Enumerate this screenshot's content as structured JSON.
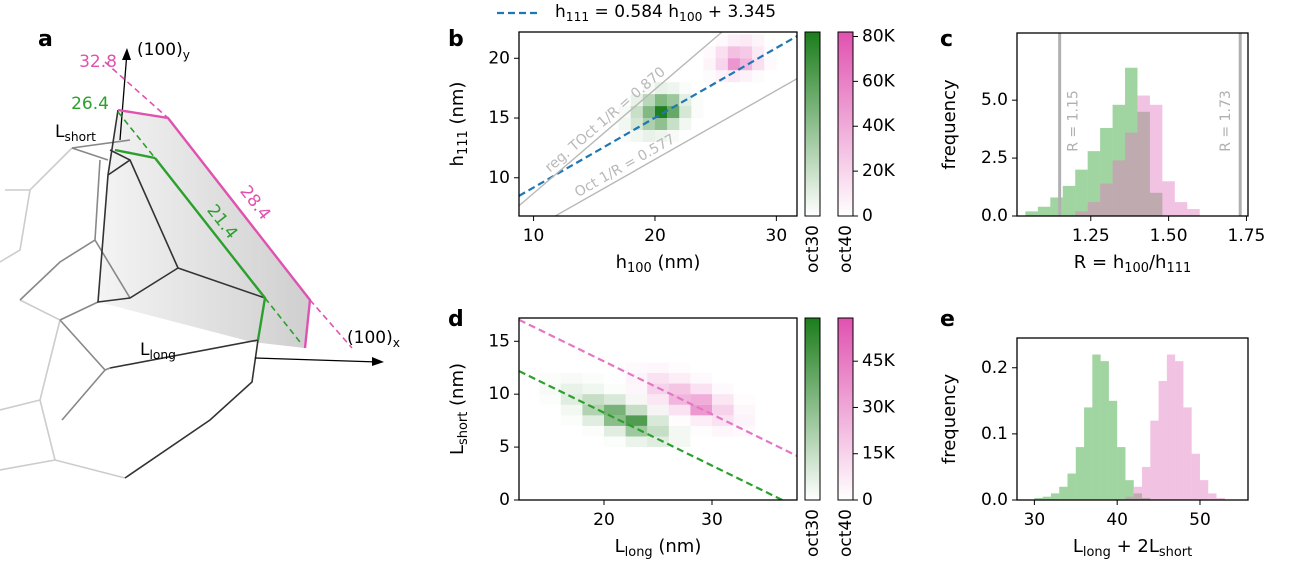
{
  "diagram": {
    "panel_label": "a",
    "axis_y": [
      {
        "t": "(100)"
      },
      {
        "sub": "y"
      }
    ],
    "axis_x": [
      {
        "t": "(100)"
      },
      {
        "sub": "x"
      }
    ],
    "l_short": [
      {
        "t": "L"
      },
      {
        "sub": "short"
      }
    ],
    "l_long": [
      {
        "t": "L"
      },
      {
        "sub": "long"
      }
    ],
    "pink_height": 32.8,
    "green_height": 26.4,
    "pink_edge": 28.4,
    "green_edge": 21.4
  },
  "chart_data": [
    {
      "type": "heatmap",
      "panel_label": "b",
      "xlabel": [
        {
          "t": "h"
        },
        {
          "sub": "100"
        },
        {
          "t": " (nm)"
        }
      ],
      "ylabel": [
        {
          "t": "h"
        },
        {
          "sub": "111"
        },
        {
          "t": " (nm)"
        }
      ],
      "xlim": [
        8.8,
        31.7
      ],
      "xticks": [
        10,
        20,
        30
      ],
      "ylim": [
        6.8,
        22.2
      ],
      "yticks": [
        10,
        15,
        20
      ],
      "series": [
        {
          "name": "oct30",
          "color": "#1b7d1b",
          "xbins": [
            17,
            18,
            19,
            20,
            21,
            22,
            23,
            24
          ],
          "ybins": [
            13,
            14,
            15,
            16,
            17,
            18
          ],
          "counts": [
            [
              2000,
              5000,
              8000,
              6000,
              3000,
              0,
              0
            ],
            [
              5000,
              15000,
              30000,
              40000,
              20000,
              5000,
              0
            ],
            [
              3000,
              20000,
              45000,
              80000,
              55000,
              15000,
              2000
            ],
            [
              0,
              8000,
              25000,
              45000,
              35000,
              10000,
              2000
            ],
            [
              0,
              0,
              3000,
              8000,
              6000,
              2000,
              0
            ]
          ]
        },
        {
          "name": "oct40",
          "color": "#e052b0",
          "xbins": [
            24,
            25,
            26,
            27,
            28,
            29,
            30
          ],
          "ybins": [
            18,
            19,
            20,
            21,
            22
          ],
          "counts": [
            [
              2000,
              6000,
              10000,
              6000,
              2000,
              0
            ],
            [
              5000,
              20000,
              50000,
              35000,
              15000,
              3000
            ],
            [
              3000,
              15000,
              30000,
              25000,
              10000,
              2000
            ],
            [
              0,
              3000,
              8000,
              10000,
              5000,
              1000
            ]
          ]
        }
      ],
      "clim": [
        0,
        82000
      ],
      "cticks": [
        0,
        {
          "value": 20000,
          "label": "20K"
        },
        {
          "value": 40000,
          "label": "40K"
        },
        {
          "value": 60000,
          "label": "60K"
        },
        {
          "value": 80000,
          "label": "80K"
        }
      ],
      "lines": [
        {
          "slope": 0.584,
          "intercept": 3.345,
          "color": "#1f77b4",
          "dashed": true,
          "legend": [
            {
              "t": "h"
            },
            {
              "sub": "111"
            },
            {
              "t": " = 0.584 h"
            },
            {
              "sub": "100"
            },
            {
              "t": " + 3.345"
            }
          ]
        },
        {
          "slope": 0.87,
          "intercept": 0,
          "color": "#b8b8b8",
          "dashed": false,
          "label": "reg. TOct 1/R = 0.870"
        },
        {
          "slope": 0.577,
          "intercept": 0,
          "color": "#b8b8b8",
          "dashed": false,
          "label": "Oct 1/R = 0.577"
        }
      ]
    },
    {
      "type": "histogram",
      "panel_label": "c",
      "xlabel": [
        {
          "t": "R = h"
        },
        {
          "sub": "100"
        },
        {
          "t": "/h"
        },
        {
          "sub": "111"
        }
      ],
      "ylabel": [
        {
          "t": "frequency"
        }
      ],
      "xlim": [
        1.013,
        1.755
      ],
      "xticks": [
        1.25,
        {
          "value": 1.5,
          "label": "1.50"
        },
        1.75
      ],
      "ylim": [
        0,
        7.9
      ],
      "yticks": [
        {
          "value": 0,
          "label": "0.0"
        },
        2.5,
        {
          "value": 5,
          "label": "5.0"
        }
      ],
      "bins": [
        1.04,
        1.08,
        1.12,
        1.16,
        1.2,
        1.24,
        1.28,
        1.32,
        1.36,
        1.4,
        1.44,
        1.48,
        1.52,
        1.56,
        1.6
      ],
      "series": [
        {
          "color": "#2ca02c",
          "values": [
            0.2,
            0.4,
            0.8,
            1.3,
            2.0,
            2.8,
            3.8,
            4.8,
            6.4,
            4.5,
            1.0,
            0,
            0,
            0
          ]
        },
        {
          "color": "#e377c2",
          "values": [
            0,
            0,
            0,
            0,
            0.2,
            0.6,
            1.4,
            2.4,
            3.6,
            5.2,
            4.8,
            1.5,
            0.6,
            0.3
          ]
        }
      ],
      "vlines": [
        {
          "x": 1.15,
          "label": "R = 1.15",
          "color": "#b0b0b0"
        },
        {
          "x": 1.73,
          "label": "R = 1.73",
          "color": "#b0b0b0"
        }
      ]
    },
    {
      "type": "heatmap",
      "panel_label": "d",
      "xlabel": [
        {
          "t": "L"
        },
        {
          "sub": "long"
        },
        {
          "t": " (nm)"
        }
      ],
      "ylabel": [
        {
          "t": "L"
        },
        {
          "sub": "short"
        },
        {
          "t": " (nm)"
        }
      ],
      "xlim": [
        12.13,
        37.87
      ],
      "xticks": [
        20,
        30
      ],
      "ylim": [
        0,
        17.2
      ],
      "yticks": [
        0,
        5,
        10,
        15
      ],
      "series": [
        {
          "name": "oct30",
          "color": "#1b7d1b",
          "xbins": [
            14,
            16,
            18,
            20,
            22,
            24,
            26,
            28
          ],
          "ybins": [
            5,
            6,
            7,
            8,
            9,
            10,
            11,
            12
          ],
          "counts": [
            [
              0,
              0,
              0,
              1000,
              5000,
              8000,
              3000
            ],
            [
              0,
              0,
              1000,
              8000,
              25000,
              15000,
              3000
            ],
            [
              0,
              1000,
              8000,
              30000,
              45000,
              10000,
              0
            ],
            [
              0,
              3000,
              20000,
              35000,
              15000,
              2000,
              0
            ],
            [
              1000,
              8000,
              15000,
              10000,
              2000,
              0,
              0
            ],
            [
              2000,
              6000,
              4000,
              1000,
              0,
              0,
              0
            ],
            [
              1000,
              2000,
              1000,
              0,
              0,
              0,
              0
            ]
          ]
        },
        {
          "name": "oct40",
          "color": "#e052b0",
          "xbins": [
            22,
            24,
            26,
            28,
            30,
            32,
            34
          ],
          "ybins": [
            6,
            7,
            8,
            9,
            10,
            11,
            12,
            13
          ],
          "counts": [
            [
              0,
              0,
              0,
              1000,
              3000,
              2000
            ],
            [
              0,
              0,
              1000,
              6000,
              10000,
              4000
            ],
            [
              0,
              2000,
              10000,
              35000,
              15000,
              3000
            ],
            [
              1000,
              8000,
              25000,
              28000,
              8000,
              1000
            ],
            [
              3000,
              15000,
              20000,
              10000,
              2000,
              0
            ],
            [
              4000,
              10000,
              6000,
              2000,
              0,
              0
            ],
            [
              2000,
              3000,
              1000,
              0,
              0,
              0
            ]
          ]
        }
      ],
      "clim": [
        0,
        59000
      ],
      "cticks": [
        0,
        {
          "value": 15000,
          "label": "15K"
        },
        {
          "value": 30000,
          "label": "30K"
        },
        {
          "value": 45000,
          "label": "45K"
        }
      ],
      "lines": [
        {
          "slope": -0.5,
          "intercept": 18.25,
          "color": "#2ca02c",
          "dashed": true
        },
        {
          "slope": -0.5,
          "intercept": 23.1,
          "color": "#e377c2",
          "dashed": true
        }
      ]
    },
    {
      "type": "histogram",
      "panel_label": "e",
      "xlabel": [
        {
          "t": "L"
        },
        {
          "sub": "long"
        },
        {
          "t": " + 2L"
        },
        {
          "sub": "short"
        }
      ],
      "ylabel": [
        {
          "t": "frequency"
        }
      ],
      "xlim": [
        27.9,
        55.8
      ],
      "xticks": [
        30,
        40,
        50
      ],
      "ylim": [
        0,
        0.245
      ],
      "yticks": [
        {
          "value": 0,
          "label": "0.0"
        },
        0.1,
        0.2
      ],
      "bins": [
        30,
        31,
        32,
        33,
        34,
        35,
        36,
        37,
        38,
        39,
        40,
        41,
        42,
        43,
        44,
        45,
        46,
        47,
        48,
        49,
        50,
        51,
        52,
        53
      ],
      "series": [
        {
          "color": "#2ca02c",
          "values": [
            0.003,
            0.005,
            0.01,
            0.02,
            0.04,
            0.08,
            0.14,
            0.22,
            0.21,
            0.15,
            0.08,
            0.03,
            0.01,
            0.003,
            0,
            0,
            0,
            0,
            0,
            0,
            0,
            0,
            0
          ]
        },
        {
          "color": "#e377c2",
          "values": [
            0,
            0,
            0,
            0,
            0,
            0,
            0,
            0,
            0,
            0,
            0,
            0.005,
            0.02,
            0.05,
            0.12,
            0.18,
            0.22,
            0.21,
            0.14,
            0.07,
            0.03,
            0.01,
            0.003
          ]
        }
      ]
    }
  ]
}
